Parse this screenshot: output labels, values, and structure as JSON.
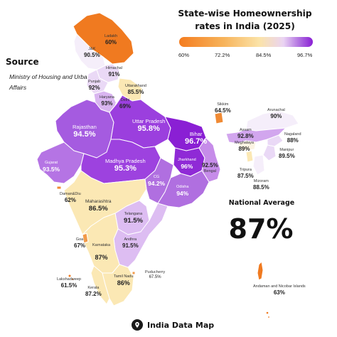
{
  "title": "State-wise Homeownership rates in India (2025)",
  "legend": {
    "ticks": [
      "60%",
      "72.2%",
      "84.5%",
      "96.7%"
    ],
    "colors": [
      "#f47c1f",
      "#f7b35a",
      "#fbe3a8",
      "#ead4f3",
      "#b06fe0",
      "#8a1fd4"
    ]
  },
  "source": {
    "label": "Source",
    "text": "Ministry of Housing and Urban Affairs"
  },
  "national": {
    "label": "National Average",
    "value": "87%"
  },
  "footer": {
    "brand": "India Data Map"
  },
  "states": [
    {
      "name": "Ladakh",
      "value": "60%"
    },
    {
      "name": "J&K",
      "value": "90.5%"
    },
    {
      "name": "Himachal",
      "value": "91%"
    },
    {
      "name": "Punjab",
      "value": "92%"
    },
    {
      "name": "Uttarakhand",
      "value": "85.5%"
    },
    {
      "name": "Haryana",
      "value": "93%"
    },
    {
      "name": "Delhi",
      "value": "69%"
    },
    {
      "name": "Rajasthan",
      "value": "94.5%"
    },
    {
      "name": "Uttar Pradesh",
      "value": "95.8%"
    },
    {
      "name": "Bihar",
      "value": "96.7%"
    },
    {
      "name": "Sikkim",
      "value": "64.5%"
    },
    {
      "name": "Arunachal",
      "value": "90%"
    },
    {
      "name": "Assam",
      "value": "92.8%"
    },
    {
      "name": "Nagaland",
      "value": "88%"
    },
    {
      "name": "Meghalaya",
      "value": "89%"
    },
    {
      "name": "Manipur",
      "value": "89.5%"
    },
    {
      "name": "Tripura",
      "value": "87.5%"
    },
    {
      "name": "Mizoram",
      "value": "88.5%"
    },
    {
      "name": "Gujarat",
      "value": "93.5%"
    },
    {
      "name": "Madhya Pradesh",
      "value": "95.3%"
    },
    {
      "name": "Jharkhand",
      "value": "96%"
    },
    {
      "name": "Bengal",
      "value": "92.5%"
    },
    {
      "name": "CG",
      "value": "94.2%"
    },
    {
      "name": "Odisha",
      "value": "94%"
    },
    {
      "name": "Daman&Diu",
      "value": "62%"
    },
    {
      "name": "Maharashtra",
      "value": "86.5%"
    },
    {
      "name": "Telangana",
      "value": "91.5%"
    },
    {
      "name": "Goa",
      "value": "67%"
    },
    {
      "name": "Karnataka",
      "value": "87%"
    },
    {
      "name": "Andhra",
      "value": "91.5%"
    },
    {
      "name": "Tamil Nadu",
      "value": "86%"
    },
    {
      "name": "Puducherry",
      "value": "67.5%"
    },
    {
      "name": "Kerala",
      "value": "87.2%"
    },
    {
      "name": "Lakshadweep",
      "value": "61.5%"
    },
    {
      "name": "Andaman and Nicobar Islands",
      "value": "63%"
    }
  ]
}
